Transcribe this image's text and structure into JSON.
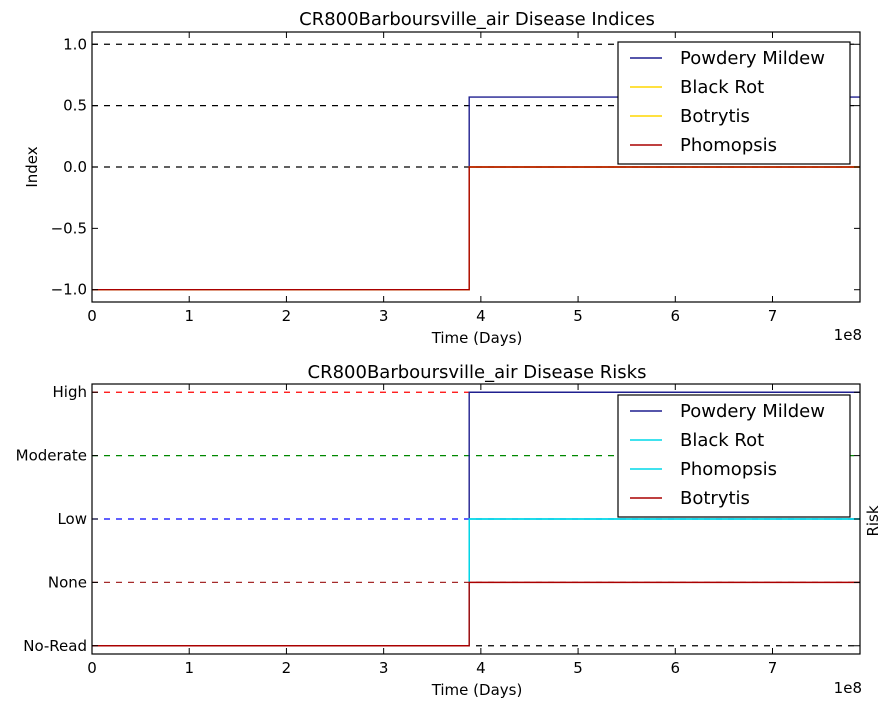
{
  "chart_data": [
    {
      "type": "line",
      "title": "CR800Barboursville_air Disease Indices",
      "xlabel": "Time (Days)",
      "ylabel": "Index",
      "x_offset_label": "1e8",
      "xlim": [
        0,
        7.9
      ],
      "ylim": [
        -1.1,
        1.1
      ],
      "x_ticks": [
        0,
        1,
        2,
        3,
        4,
        5,
        6,
        7
      ],
      "y_ticks": [
        1.0,
        0.5,
        0.0,
        -0.5,
        -1.0
      ],
      "y_tick_labels": [
        "1.0",
        "0.5",
        "0.0",
        "−0.5",
        "−1.0"
      ],
      "reference_lines": [
        {
          "y": 1.0,
          "color": "#000000",
          "style": "dashed"
        },
        {
          "y": 0.5,
          "color": "#000000",
          "style": "dashed"
        },
        {
          "y": 0.0,
          "color": "#000000",
          "style": "dashed"
        }
      ],
      "legend_location": "top-right",
      "series": [
        {
          "name": "Powdery Mildew",
          "color": "#1f1f8f",
          "x": [
            0,
            3.88,
            3.88,
            7.9
          ],
          "y": [
            -1.0,
            -1.0,
            0.57,
            0.57
          ]
        },
        {
          "name": "Black Rot",
          "color": "#ffd700",
          "x": [
            0,
            3.88,
            3.88,
            7.9
          ],
          "y": [
            -1.0,
            -1.0,
            0.0,
            0.0
          ]
        },
        {
          "name": "Botrytis",
          "color": "#ffd700",
          "x": [
            0,
            3.88,
            3.88,
            7.9
          ],
          "y": [
            -1.0,
            -1.0,
            0.0,
            0.0
          ]
        },
        {
          "name": "Phomopsis",
          "color": "#aa0000",
          "x": [
            0,
            3.88,
            3.88,
            7.9
          ],
          "y": [
            -1.0,
            -1.0,
            0.0,
            0.0
          ]
        }
      ]
    },
    {
      "type": "line",
      "title": "CR800Barboursville_air Disease Risks",
      "xlabel": "Time (Days)",
      "ylabel": "Risk",
      "x_offset_label": "1e8",
      "xlim": [
        0,
        7.9
      ],
      "ylim": [
        -0.13,
        4.13
      ],
      "x_ticks": [
        0,
        1,
        2,
        3,
        4,
        5,
        6,
        7
      ],
      "y_ticks": [
        4,
        3,
        2,
        1,
        0
      ],
      "y_tick_labels": [
        "High",
        "Moderate",
        "Low",
        "None",
        "No-Read"
      ],
      "reference_lines": [
        {
          "y": 4,
          "color": "#ff0000",
          "style": "dashed"
        },
        {
          "y": 3,
          "color": "#008800",
          "style": "dashed"
        },
        {
          "y": 2,
          "color": "#0000ff",
          "style": "dashed"
        },
        {
          "y": 1,
          "color": "#a52a2a",
          "style": "dashed"
        },
        {
          "y": 0,
          "color": "#000000",
          "style": "dashed"
        }
      ],
      "legend_location": "top-right",
      "series": [
        {
          "name": "Powdery Mildew",
          "color": "#1f1f8f",
          "x": [
            0,
            3.88,
            3.88,
            7.9
          ],
          "y": [
            0,
            0,
            4,
            4
          ]
        },
        {
          "name": "Black Rot",
          "color": "#00d8e8",
          "x": [
            0,
            3.88,
            3.88,
            7.9
          ],
          "y": [
            0,
            0,
            2,
            2
          ]
        },
        {
          "name": "Phomopsis",
          "color": "#00d8e8",
          "x": [
            0,
            3.88,
            3.88,
            7.9
          ],
          "y": [
            0,
            0,
            2,
            2
          ]
        },
        {
          "name": "Botrytis",
          "color": "#aa0000",
          "x": [
            0,
            3.88,
            3.88,
            7.9
          ],
          "y": [
            0,
            0,
            1,
            1
          ]
        }
      ]
    }
  ]
}
